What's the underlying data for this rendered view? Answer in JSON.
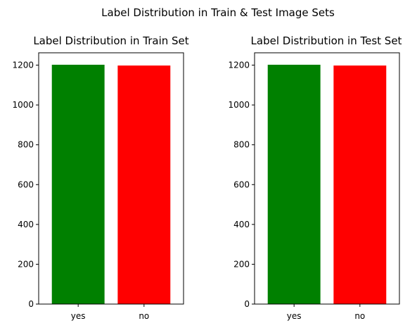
{
  "figure": {
    "suptitle": "Label Distribution in Train & Test Image Sets"
  },
  "chart_data": [
    {
      "type": "bar",
      "title": "Label Distribution in Train Set",
      "xlabel": "",
      "ylabel": "",
      "categories": [
        "yes",
        "no"
      ],
      "values": [
        1202,
        1198
      ],
      "colors": [
        "#008000",
        "#ff0000"
      ],
      "ylim": [
        0,
        1262
      ],
      "yticks": [
        0,
        200,
        400,
        600,
        800,
        1000,
        1200
      ],
      "grid": false
    },
    {
      "type": "bar",
      "title": "Label Distribution in Test Set",
      "xlabel": "",
      "ylabel": "",
      "categories": [
        "yes",
        "no"
      ],
      "values": [
        1202,
        1198
      ],
      "colors": [
        "#008000",
        "#ff0000"
      ],
      "ylim": [
        0,
        1262
      ],
      "yticks": [
        0,
        200,
        400,
        600,
        800,
        1000,
        1200
      ],
      "grid": false
    }
  ]
}
